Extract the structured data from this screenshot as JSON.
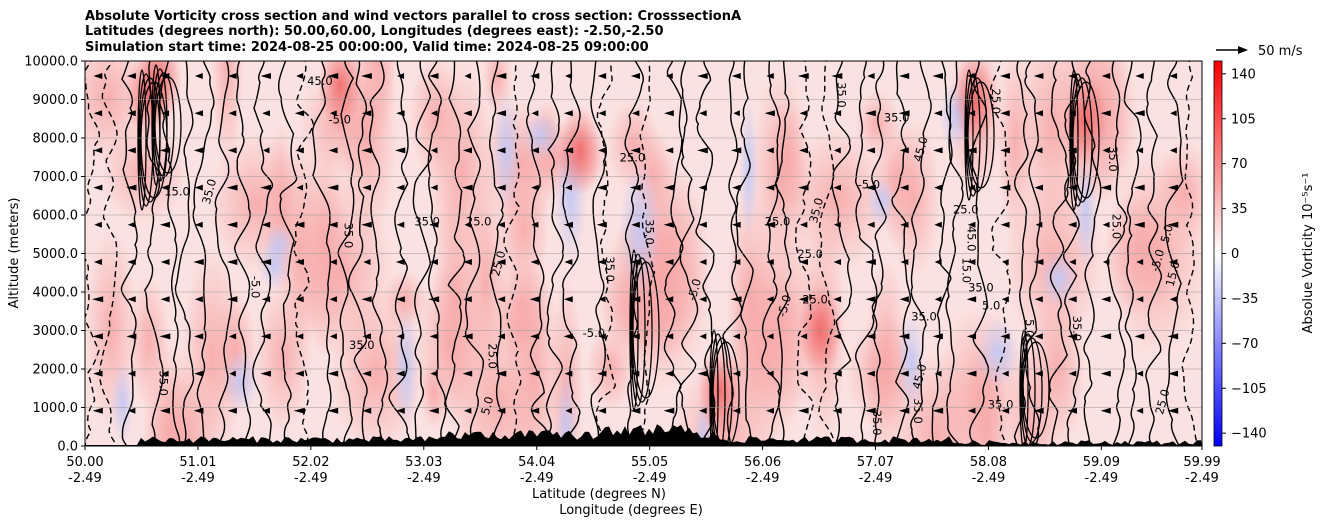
{
  "chart_data": {
    "type": "heatmap",
    "title_lines": [
      "Absolute Vorticity cross section and wind vectors parallel to cross section: CrosssectionA",
      "Latitudes (degrees north): 50.00,60.00, Longitudes (degrees east): -2.50,-2.50",
      "Simulation start time: 2024-08-25 00:00:00, Valid time: 2024-08-25 09:00:00"
    ],
    "xlabel_lines": [
      "Latitude (degrees N)",
      "Longitude (degrees E)"
    ],
    "ylabel": "Altitude (meters)",
    "x_ticks": [
      {
        "lat": "50.00",
        "lon": "-2.49"
      },
      {
        "lat": "51.01",
        "lon": "-2.49"
      },
      {
        "lat": "52.02",
        "lon": "-2.49"
      },
      {
        "lat": "53.03",
        "lon": "-2.49"
      },
      {
        "lat": "54.04",
        "lon": "-2.49"
      },
      {
        "lat": "55.05",
        "lon": "-2.49"
      },
      {
        "lat": "56.06",
        "lon": "-2.49"
      },
      {
        "lat": "57.07",
        "lon": "-2.49"
      },
      {
        "lat": "58.08",
        "lon": "-2.49"
      },
      {
        "lat": "59.09",
        "lon": "-2.49"
      },
      {
        "lat": "59.99",
        "lon": "-2.49"
      }
    ],
    "xlim": [
      50.0,
      59.99
    ],
    "y_ticks": [
      "0.0",
      "1000.0",
      "2000.0",
      "3000.0",
      "4000.0",
      "5000.0",
      "6000.0",
      "7000.0",
      "8000.0",
      "9000.0",
      "10000.0"
    ],
    "ylim": [
      0,
      10000
    ],
    "grid": "horizontal",
    "colorbar": {
      "label": "Absolue Vorticity 10⁻⁵s⁻¹",
      "ticks": [
        "140",
        "105",
        "70",
        "35",
        "0",
        "−35",
        "−70",
        "−105",
        "−140"
      ],
      "range": [
        -150,
        150
      ],
      "colors": {
        "low": "#0000ff",
        "mid": "#ffffff",
        "high": "#ff0000"
      }
    },
    "quiver_key": {
      "label": "50 m/s",
      "speed": 50
    },
    "contour_labels": [
      "5.0",
      "15.0",
      "25.0",
      "35.0",
      "45.0",
      "-5.0"
    ],
    "wind_direction": "westward",
    "terrain_color": "#000000"
  }
}
